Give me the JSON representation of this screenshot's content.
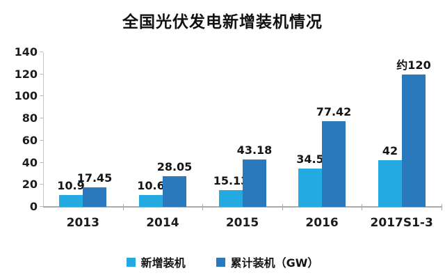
{
  "title": "全国光伏发电新增装机情况",
  "chart_data": {
    "type": "bar",
    "title": "全国光伏发电新增装机情况",
    "categories": [
      "2013",
      "2014",
      "2015",
      "2016",
      "2017S1-3"
    ],
    "series": [
      {
        "name": "新增装机",
        "color": "#24a9e0",
        "values": [
          10.9,
          10.6,
          15.13,
          34.5,
          42
        ],
        "labels": [
          "10.9",
          "10.6",
          "15.13",
          "34.5",
          "42"
        ]
      },
      {
        "name": "累计装机（GW）",
        "color": "#2a79bd",
        "values": [
          17.45,
          28.05,
          43.18,
          77.42,
          120
        ],
        "labels": [
          "17.45",
          "28.05",
          "43.18",
          "77.42",
          "约120"
        ]
      }
    ],
    "xlabel": "",
    "ylabel": "",
    "ylim": [
      0,
      140
    ],
    "yticks": [
      0,
      20,
      40,
      60,
      80,
      100,
      120,
      140
    ],
    "grid": false,
    "legend_position": "bottom"
  },
  "colors": {
    "series1": "#24a9e0",
    "series2": "#2a79bd",
    "axis_line": "#ababab",
    "y_axis_line": "#c9c9c9",
    "text": "#141414",
    "background": "#ffffff"
  }
}
